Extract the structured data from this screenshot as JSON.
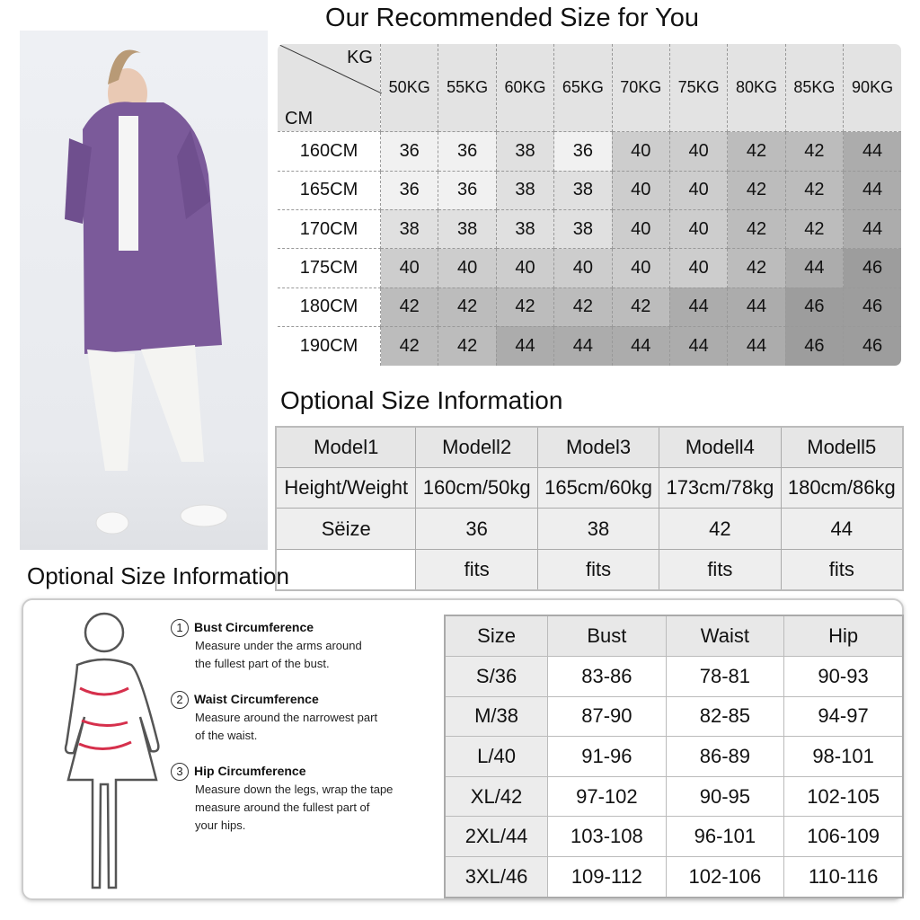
{
  "title": "Our Recommended Size for You",
  "recommended": {
    "corner_kg": "KG",
    "corner_cm": "CM",
    "weights": [
      "50KG",
      "55KG",
      "60KG",
      "65KG",
      "70KG",
      "75KG",
      "80KG",
      "85KG",
      "90KG"
    ],
    "rows": [
      {
        "height": "160CM",
        "sizes": [
          "36",
          "36",
          "38",
          "36",
          "40",
          "40",
          "42",
          "42",
          "44"
        ]
      },
      {
        "height": "165CM",
        "sizes": [
          "36",
          "36",
          "38",
          "38",
          "40",
          "40",
          "42",
          "42",
          "44"
        ]
      },
      {
        "height": "170CM",
        "sizes": [
          "38",
          "38",
          "38",
          "38",
          "40",
          "40",
          "42",
          "42",
          "44"
        ]
      },
      {
        "height": "175CM",
        "sizes": [
          "40",
          "40",
          "40",
          "40",
          "40",
          "40",
          "42",
          "44",
          "46"
        ]
      },
      {
        "height": "180CM",
        "sizes": [
          "42",
          "42",
          "42",
          "42",
          "42",
          "44",
          "44",
          "46",
          "46"
        ]
      },
      {
        "height": "190CM",
        "sizes": [
          "42",
          "42",
          "44",
          "44",
          "44",
          "44",
          "44",
          "46",
          "46"
        ]
      }
    ]
  },
  "optional1": {
    "heading": "Optional Size Information",
    "rows": [
      [
        "Model1",
        "Modell2",
        "Model3",
        "Modell4",
        "Modell5"
      ],
      [
        "Height/Weight",
        "160cm/50kg",
        "165cm/60kg",
        "173cm/78kg",
        "180cm/86kg"
      ],
      [
        "Sëize",
        "36",
        "38",
        "42",
        "44"
      ],
      [
        "",
        "fits",
        "fits",
        "fits",
        "fits"
      ]
    ]
  },
  "optional2": {
    "heading": "Optional Size Information",
    "measurements": [
      {
        "num": "1",
        "title": "Bust Circumference",
        "desc": [
          "Measure under the arms around",
          "the fullest part of the bust."
        ]
      },
      {
        "num": "2",
        "title": "Waist Circumference",
        "desc": [
          "Measure around the narrowest part",
          "of the waist."
        ]
      },
      {
        "num": "3",
        "title": "Hip Circumference",
        "desc": [
          "Measure down the legs, wrap the tape",
          "measure around the fullest part of",
          "your hips."
        ]
      }
    ],
    "table": {
      "headers": [
        "Size",
        "Bust",
        "Waist",
        "Hip"
      ],
      "rows": [
        [
          "S/36",
          "83-86",
          "78-81",
          "90-93"
        ],
        [
          "M/38",
          "87-90",
          "82-85",
          "94-97"
        ],
        [
          "L/40",
          "91-96",
          "86-89",
          "98-101"
        ],
        [
          "XL/42",
          "97-102",
          "90-95",
          "102-105"
        ],
        [
          "2XL/44",
          "103-108",
          "96-101",
          "106-109"
        ],
        [
          "3XL/46",
          "109-112",
          "102-106",
          "110-116"
        ]
      ]
    }
  },
  "colors": {
    "coat": "#7b5a9a",
    "measure_line": "#d6304c"
  }
}
